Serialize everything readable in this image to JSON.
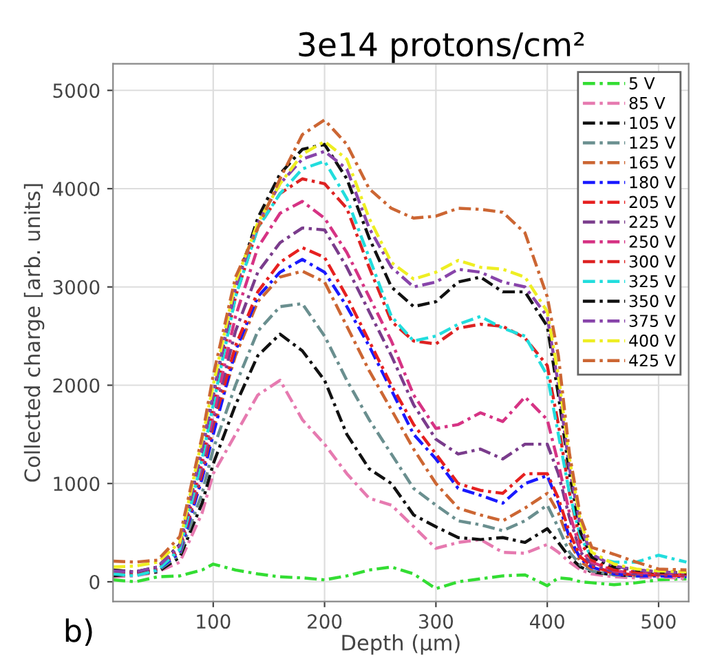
{
  "chart_data": {
    "type": "line",
    "title": "3e14 protons/cm²",
    "xlabel": "Depth (μm)",
    "ylabel": "Collected charge [arb. units]",
    "annotations": [
      "b)"
    ],
    "xlim": [
      10,
      527
    ],
    "xticks": [
      100,
      200,
      300,
      400,
      500
    ],
    "ylim": [
      -200,
      5270
    ],
    "yticks": [
      0,
      1000,
      2000,
      3000,
      4000,
      5000
    ],
    "grid": true,
    "legend": "top right",
    "marker": "none",
    "line_style": "dashed",
    "x": [
      10,
      30,
      50,
      70,
      90,
      100,
      120,
      140,
      160,
      180,
      200,
      220,
      240,
      260,
      280,
      300,
      320,
      340,
      360,
      380,
      400,
      410,
      420,
      430,
      440,
      460,
      480,
      500,
      525
    ],
    "series": [
      {
        "name": "5 V",
        "color": "#33dd33",
        "values": [
          20,
          0,
          50,
          60,
          120,
          180,
          120,
          80,
          50,
          40,
          20,
          60,
          120,
          150,
          80,
          -70,
          0,
          30,
          60,
          70,
          -40,
          40,
          30,
          0,
          -10,
          -30,
          -10,
          20,
          30
        ]
      },
      {
        "name": "85 V",
        "color": "#e67ab0",
        "values": [
          50,
          60,
          100,
          200,
          700,
          1100,
          1500,
          1900,
          2050,
          1650,
          1400,
          1100,
          850,
          780,
          560,
          340,
          400,
          430,
          300,
          290,
          380,
          300,
          200,
          120,
          80,
          50,
          40,
          50,
          30
        ]
      },
      {
        "name": "105 V",
        "color": "#111111",
        "values": [
          60,
          80,
          100,
          250,
          800,
          1200,
          1800,
          2300,
          2520,
          2350,
          2050,
          1500,
          1150,
          1000,
          680,
          560,
          450,
          430,
          450,
          400,
          540,
          400,
          250,
          150,
          100,
          70,
          60,
          80,
          60
        ]
      },
      {
        "name": "125 V",
        "color": "#6a8f8f",
        "values": [
          80,
          90,
          110,
          280,
          900,
          1350,
          2000,
          2550,
          2800,
          2830,
          2500,
          2050,
          1650,
          1300,
          950,
          780,
          620,
          580,
          520,
          620,
          780,
          550,
          300,
          170,
          110,
          70,
          60,
          70,
          60
        ]
      },
      {
        "name": "165 V",
        "color": "#cc6633",
        "values": [
          120,
          100,
          130,
          320,
          1100,
          1550,
          2300,
          2850,
          3100,
          3160,
          3050,
          2600,
          2150,
          1750,
          1350,
          1000,
          750,
          680,
          620,
          750,
          900,
          700,
          400,
          200,
          130,
          90,
          80,
          90,
          70
        ]
      },
      {
        "name": "180 V",
        "color": "#1a1aff",
        "values": [
          100,
          80,
          120,
          300,
          1050,
          1500,
          2350,
          2900,
          3150,
          3280,
          3150,
          2800,
          2400,
          1950,
          1500,
          1250,
          950,
          880,
          800,
          1000,
          1080,
          800,
          450,
          230,
          150,
          80,
          60,
          60,
          50
        ]
      },
      {
        "name": "205 V",
        "color": "#e62020",
        "values": [
          110,
          90,
          130,
          320,
          1100,
          1600,
          2400,
          2950,
          3250,
          3400,
          3300,
          2900,
          2450,
          2000,
          1600,
          1300,
          1000,
          930,
          900,
          1100,
          1100,
          850,
          500,
          250,
          160,
          90,
          70,
          70,
          60
        ]
      },
      {
        "name": "225 V",
        "color": "#7a3c8c",
        "values": [
          100,
          90,
          130,
          330,
          1150,
          1650,
          2550,
          3150,
          3450,
          3600,
          3580,
          3200,
          2750,
          2300,
          1800,
          1450,
          1300,
          1350,
          1250,
          1400,
          1400,
          1100,
          650,
          300,
          180,
          100,
          80,
          80,
          70
        ]
      },
      {
        "name": "250 V",
        "color": "#d63384",
        "values": [
          110,
          100,
          140,
          350,
          1200,
          1700,
          2700,
          3400,
          3750,
          3870,
          3700,
          3350,
          2900,
          2450,
          1900,
          1560,
          1600,
          1720,
          1630,
          1880,
          1650,
          1200,
          700,
          320,
          200,
          110,
          90,
          90,
          70
        ]
      },
      {
        "name": "300 V",
        "color": "#dd2222",
        "values": [
          100,
          90,
          140,
          350,
          1250,
          1800,
          2900,
          3600,
          3950,
          4100,
          4050,
          3800,
          3200,
          2650,
          2450,
          2420,
          2580,
          2620,
          2600,
          2480,
          2200,
          1600,
          900,
          400,
          220,
          120,
          100,
          90,
          80
        ]
      },
      {
        "name": "325 V",
        "color": "#22dddd",
        "values": [
          80,
          60,
          120,
          330,
          1250,
          1800,
          2900,
          3600,
          3950,
          4200,
          4280,
          3900,
          3300,
          2700,
          2450,
          2500,
          2620,
          2700,
          2580,
          2500,
          2100,
          1500,
          900,
          450,
          250,
          200,
          200,
          270,
          200
        ]
      },
      {
        "name": "350 V",
        "color": "#111111",
        "values": [
          120,
          100,
          150,
          380,
          1350,
          1900,
          3000,
          3700,
          4150,
          4400,
          4450,
          4100,
          3500,
          3000,
          2800,
          2850,
          3050,
          3100,
          2950,
          2950,
          2600,
          1900,
          1100,
          500,
          250,
          150,
          120,
          100,
          90
        ]
      },
      {
        "name": "375 V",
        "color": "#8844aa",
        "values": [
          110,
          100,
          150,
          370,
          1350,
          1900,
          3000,
          3650,
          4050,
          4300,
          4380,
          4200,
          3600,
          3200,
          3000,
          3050,
          3180,
          3150,
          3050,
          3000,
          2700,
          2000,
          1150,
          550,
          280,
          160,
          120,
          100,
          90
        ]
      },
      {
        "name": "400 V",
        "color": "#eeee22",
        "values": [
          150,
          160,
          200,
          400,
          1450,
          2000,
          3050,
          3650,
          4050,
          4350,
          4480,
          4300,
          3700,
          3250,
          3080,
          3150,
          3270,
          3200,
          3180,
          3100,
          2750,
          2100,
          1250,
          600,
          300,
          180,
          130,
          110,
          100
        ]
      },
      {
        "name": "425 V",
        "color": "#cc6633",
        "values": [
          210,
          200,
          220,
          460,
          1480,
          2100,
          3100,
          3600,
          4100,
          4550,
          4700,
          4450,
          4000,
          3800,
          3700,
          3720,
          3800,
          3790,
          3760,
          3550,
          2900,
          2300,
          1300,
          650,
          350,
          280,
          200,
          130,
          120
        ]
      }
    ]
  }
}
